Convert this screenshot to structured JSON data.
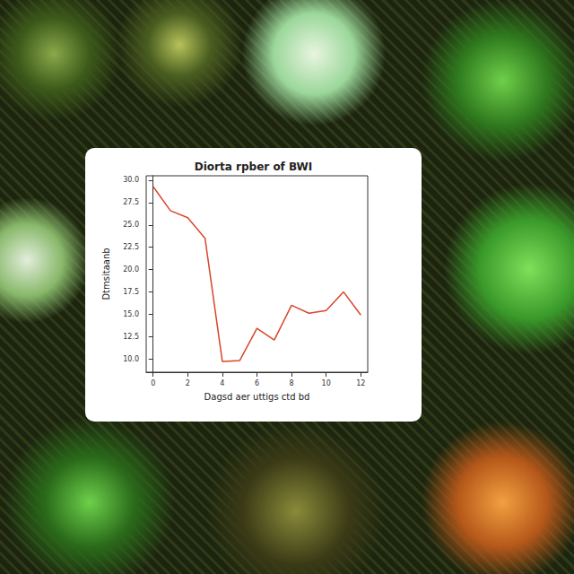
{
  "chart_data": {
    "type": "line",
    "title": "Diorta rpber of BWI",
    "x_label": "Dagsd aer uttigs ctd bd",
    "y_label": "Dtmsitaanb",
    "x": [
      0,
      1,
      2,
      3,
      4,
      5,
      6,
      7,
      8,
      9,
      10,
      11,
      12
    ],
    "values": [
      29.3,
      26.6,
      25.8,
      23.5,
      9.7,
      9.8,
      13.4,
      12.1,
      16.0,
      15.1,
      15.4,
      17.5,
      14.9
    ],
    "color": "#d9452b",
    "xlim": [
      -0.4,
      12.4
    ],
    "xticks": [
      0,
      2,
      4,
      6,
      8,
      10,
      12
    ],
    "ylim": [
      8.5,
      30.5
    ],
    "yticks": [
      {
        "value": 10,
        "label": "10.0"
      },
      {
        "value": 12.5,
        "label": "12.5"
      },
      {
        "value": 15,
        "label": "15.0"
      },
      {
        "value": 17.5,
        "label": "17.5"
      },
      {
        "value": 20,
        "label": "20.0"
      },
      {
        "value": 22.5,
        "label": "22.5"
      },
      {
        "value": 25,
        "label": "25.0"
      },
      {
        "value": 27.5,
        "label": "27.5"
      },
      {
        "value": 30,
        "label": "30.0"
      }
    ],
    "grid": false
  }
}
